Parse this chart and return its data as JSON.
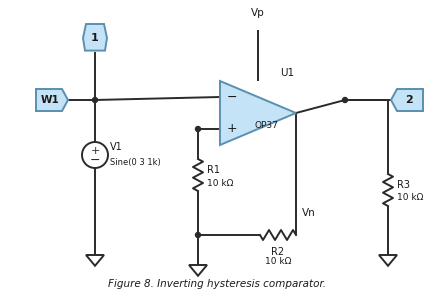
{
  "title": "Figure 8. Inverting hysteresis comparator.",
  "bg_color": "#ffffff",
  "line_color": "#2a2a2a",
  "component_fill": "#c5e3f7",
  "component_edge": "#5a8fb0",
  "text_color": "#1a1a1a",
  "waveform_label": "W1",
  "probe1_label": "1",
  "probe2_label": "2",
  "v_source_label": "V1",
  "v_source_param": "Sine(0 3 1k)",
  "r1_label": "R1",
  "r1_val": "10 kΩ",
  "r2_label": "R2",
  "r2_val": "10 kΩ",
  "r3_label": "R3",
  "r3_val": "10 kΩ",
  "opamp_label": "OP37",
  "u1_label": "U1",
  "vp_label": "Vp",
  "vn_label": "Vn"
}
